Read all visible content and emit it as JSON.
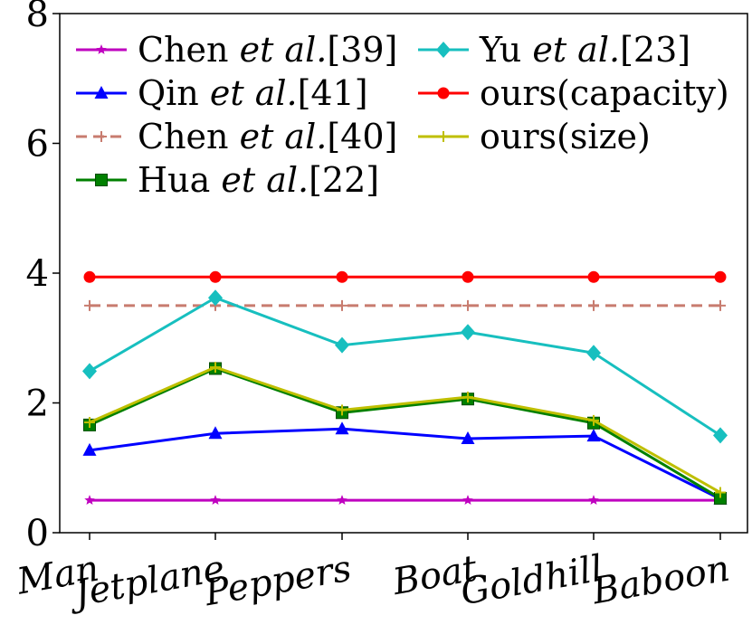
{
  "chart_data": {
    "type": "line",
    "categories": [
      "Man",
      "Jetplane",
      "Peppers",
      "Boat",
      "Goldhill",
      "Baboon"
    ],
    "ylim": [
      0,
      8
    ],
    "yticks": [
      "0",
      "2",
      "4",
      "6",
      "8"
    ],
    "grid": false,
    "legend_placement": "top",
    "series": [
      {
        "name_main": "Chen ",
        "name_italic": "et al.",
        "name_ref": "[39]",
        "color": "#bf00bf",
        "marker": "star",
        "dash": false,
        "values": [
          0.5,
          0.5,
          0.5,
          0.5,
          0.5,
          0.5
        ]
      },
      {
        "name_main": "Qin ",
        "name_italic": "et al.",
        "name_ref": "[41]",
        "color": "#0000ff",
        "marker": "triangle",
        "dash": false,
        "values": [
          1.27,
          1.53,
          1.6,
          1.45,
          1.49,
          0.52
        ]
      },
      {
        "name_main": "Chen ",
        "name_italic": "et al.",
        "name_ref": "[40]",
        "color": "#c87c6f",
        "marker": "plus",
        "dash": true,
        "values": [
          3.5,
          3.5,
          3.5,
          3.5,
          3.5,
          3.5
        ]
      },
      {
        "name_main": "Hua ",
        "name_italic": "et al.",
        "name_ref": "[22]",
        "color": "#008000",
        "marker": "square",
        "dash": false,
        "values": [
          1.66,
          2.53,
          1.85,
          2.06,
          1.69,
          0.53
        ]
      },
      {
        "name_main": "Yu ",
        "name_italic": "et al.",
        "name_ref": "[23]",
        "color": "#17bfbf",
        "marker": "diamond",
        "dash": false,
        "values": [
          2.49,
          3.62,
          2.89,
          3.09,
          2.77,
          1.5
        ]
      },
      {
        "name_main": "ours(capacity)",
        "name_italic": "",
        "name_ref": "",
        "color": "#ff0000",
        "marker": "circle",
        "dash": false,
        "values": [
          3.94,
          3.94,
          3.94,
          3.94,
          3.94,
          3.94
        ]
      },
      {
        "name_main": "ours(size)",
        "name_italic": "",
        "name_ref": "",
        "color": "#bfbf00",
        "marker": "plus",
        "dash": false,
        "values": [
          1.7,
          2.55,
          1.89,
          2.09,
          1.73,
          0.62
        ]
      }
    ]
  }
}
